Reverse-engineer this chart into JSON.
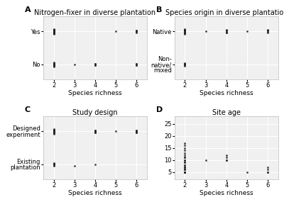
{
  "panels": [
    {
      "label": "A",
      "title": "Nitrogen-fixer in diverse plantation",
      "ytick_labels": [
        "Yes",
        "No"
      ],
      "ytick_positions": [
        1,
        0
      ],
      "scatter_data": [
        {
          "y_cat": 1,
          "x_vals": [
            2,
            2,
            2,
            2,
            2,
            2,
            2,
            2,
            2,
            2,
            2,
            2,
            2,
            2,
            2,
            5,
            6,
            6,
            6,
            6,
            6
          ],
          "y_jitter": [
            0,
            0.02,
            -0.02,
            0.04,
            -0.04,
            0.06,
            -0.06,
            0.08,
            -0.08,
            0.03,
            -0.03,
            0.05,
            -0.05,
            0.01,
            -0.01,
            0,
            0.02,
            -0.02,
            0.03,
            -0.03,
            0.01
          ]
        },
        {
          "y_cat": 0,
          "x_vals": [
            2,
            2,
            2,
            2,
            2,
            2,
            2,
            2,
            2,
            2,
            3,
            4,
            4,
            4,
            4,
            6,
            6,
            6,
            6
          ],
          "y_jitter": [
            0,
            0.02,
            -0.02,
            0.04,
            -0.04,
            0.06,
            -0.06,
            0.03,
            -0.03,
            0.01,
            0,
            0.02,
            -0.02,
            0.03,
            -0.03,
            0.02,
            -0.02,
            0.03,
            -0.03
          ]
        }
      ]
    },
    {
      "label": "B",
      "title": "Species origin in diverse plantation",
      "ytick_labels": [
        "Native",
        "Non-\nnative/\nmixed"
      ],
      "ytick_positions": [
        1,
        0
      ],
      "scatter_data": [
        {
          "y_cat": 1,
          "x_vals": [
            2,
            2,
            2,
            2,
            2,
            2,
            2,
            2,
            2,
            2,
            2,
            3,
            4,
            4,
            4,
            4,
            4,
            4,
            5,
            6,
            6,
            6,
            6,
            6
          ],
          "y_jitter": [
            0,
            0.02,
            -0.02,
            0.04,
            -0.04,
            0.06,
            -0.06,
            0.08,
            -0.08,
            0.03,
            -0.03,
            0,
            0.02,
            -0.02,
            0.03,
            -0.03,
            0.04,
            -0.04,
            0,
            0.02,
            -0.02,
            0.03,
            -0.03,
            0.04
          ]
        },
        {
          "y_cat": 0,
          "x_vals": [
            2,
            2,
            2,
            2,
            2,
            2
          ],
          "y_jitter": [
            0,
            0.02,
            -0.02,
            0.04,
            -0.04,
            0.03
          ]
        }
      ]
    },
    {
      "label": "C",
      "title": "Study design",
      "ytick_labels": [
        "Designed\nexperiment",
        "Existing\nplantation"
      ],
      "ytick_positions": [
        1,
        0
      ],
      "scatter_data": [
        {
          "y_cat": 1,
          "x_vals": [
            2,
            2,
            2,
            2,
            2,
            2,
            2,
            2,
            2,
            2,
            2,
            4,
            4,
            4,
            4,
            4,
            4,
            5,
            6,
            6,
            6,
            6,
            6,
            6
          ],
          "y_jitter": [
            0,
            0.02,
            -0.02,
            0.04,
            -0.04,
            0.06,
            -0.06,
            0.08,
            -0.08,
            0.03,
            -0.03,
            0.02,
            -0.02,
            0.03,
            -0.03,
            0.04,
            -0.04,
            0,
            0.02,
            -0.02,
            0.03,
            -0.03,
            0.04,
            -0.04
          ]
        },
        {
          "y_cat": 0,
          "x_vals": [
            2,
            2,
            2,
            2,
            2,
            2,
            3,
            4
          ],
          "y_jitter": [
            0,
            0.02,
            -0.02,
            0.04,
            -0.04,
            0.03,
            -0.03,
            0
          ]
        }
      ]
    },
    {
      "label": "D",
      "title": "Site age",
      "ytick_labels": [
        "25",
        "20",
        "15",
        "10",
        "5"
      ],
      "ytick_positions": [
        25,
        20,
        15,
        10,
        5
      ],
      "ylim": [
        2,
        28
      ],
      "scatter_data": [
        {
          "x_vals": [
            2,
            2,
            2,
            2,
            2,
            2,
            2,
            2,
            2,
            2,
            2,
            2,
            2,
            2,
            2,
            2,
            2,
            2,
            2,
            2,
            2,
            2,
            2,
            2,
            2,
            3,
            4,
            4,
            4,
            4,
            5,
            6,
            6,
            6,
            6
          ],
          "y_vals": [
            5,
            5,
            5,
            5,
            5,
            6,
            6,
            6,
            7,
            7,
            7,
            8,
            8,
            9,
            9,
            10,
            10,
            11,
            11,
            12,
            13,
            14,
            15,
            16,
            17,
            10,
            10,
            10,
            11,
            12,
            5,
            5,
            5,
            6,
            7
          ]
        }
      ]
    }
  ],
  "xlabel": "Species richness",
  "xlim": [
    1.5,
    6.5
  ],
  "xticks": [
    2,
    3,
    4,
    5,
    6
  ],
  "bg_color": "#f0f0f0",
  "point_color": "#222222",
  "point_size": 4,
  "grid_color": "white",
  "axis_label_size": 6.5,
  "title_size": 7,
  "tick_size": 6
}
